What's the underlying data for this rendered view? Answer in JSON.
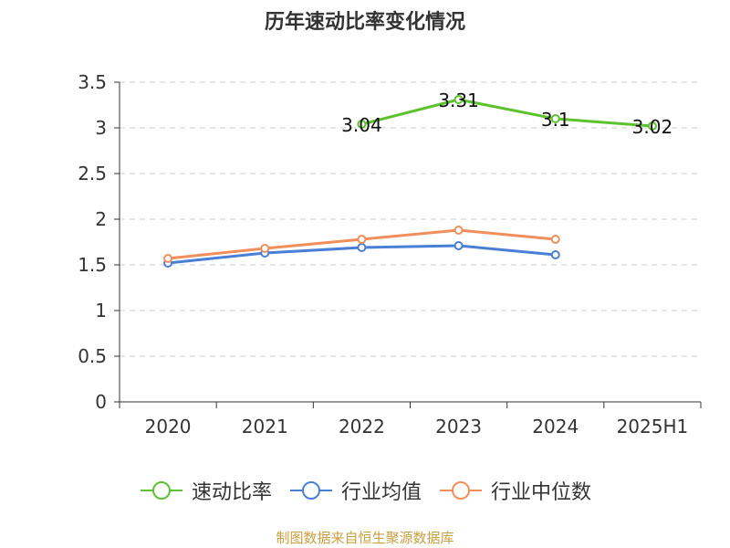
{
  "title": "历年速动比率变化情况",
  "source_note": "制图数据来自恒生聚源数据库",
  "colors": {
    "grid": "#cccccc",
    "axis": "#333333",
    "text": "#333333",
    "source": "#c8a040"
  },
  "chart_data": {
    "type": "line",
    "title": "历年速动比率变化情况",
    "categories": [
      "2020",
      "2021",
      "2022",
      "2023",
      "2024",
      "2025H1"
    ],
    "ylim": [
      0,
      3.5
    ],
    "yticks": [
      "0",
      "0.5",
      "1",
      "1.5",
      "2",
      "2.5",
      "3",
      "3.5"
    ],
    "grid": true,
    "legend_position": "bottom",
    "series": [
      {
        "name": "速动比率",
        "color": "#5cc22e",
        "values": [
          null,
          null,
          3.04,
          3.31,
          3.1,
          3.02
        ],
        "labels": [
          "",
          "",
          "3.04",
          "3.31",
          "3.1",
          "3.02"
        ],
        "show_labels": true
      },
      {
        "name": "行业均值",
        "color": "#4a7fd6",
        "values": [
          1.52,
          1.63,
          1.69,
          1.71,
          1.61,
          null
        ],
        "labels": [
          "",
          "",
          "",
          "",
          "",
          ""
        ],
        "show_labels": false
      },
      {
        "name": "行业中位数",
        "color": "#f28e5b",
        "values": [
          1.57,
          1.68,
          1.78,
          1.88,
          1.78,
          null
        ],
        "labels": [
          "",
          "",
          "",
          "",
          "",
          ""
        ],
        "show_labels": false
      }
    ]
  }
}
